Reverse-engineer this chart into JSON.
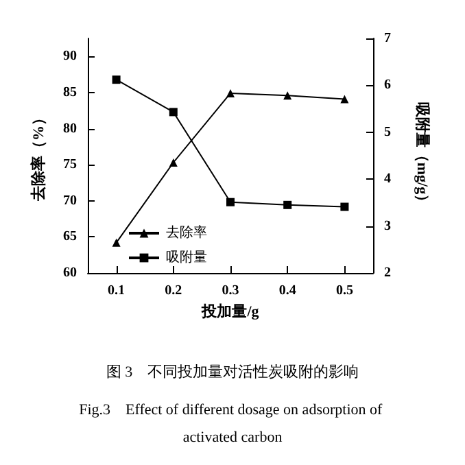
{
  "chart_data": {
    "type": "line",
    "title": "图 3　不同投加量对活性炭吸附的影响",
    "subtitle": "Fig.3　Effect of different dosage on adsorption of activated carbon",
    "xlabel": "投加量/g",
    "ylabel": "去除率（%）",
    "y2label": "吸附量（mg/g）",
    "x": [
      0.1,
      0.2,
      0.3,
      0.4,
      0.5
    ],
    "series": [
      {
        "name": "去除率",
        "color": "#000000",
        "marker": "triangle",
        "values": [
          64.2,
          75.3,
          84.9,
          84.6,
          84.1
        ]
      },
      {
        "name": "吸附量",
        "color": "#000000",
        "marker": "square",
        "axis": "y2",
        "values": [
          6.12,
          5.43,
          3.51,
          3.45,
          3.41
        ]
      }
    ],
    "xlim": [
      0.05,
      0.55
    ],
    "xticks": [
      0.1,
      0.2,
      0.3,
      0.4,
      0.5
    ],
    "ylim": [
      60,
      92.5
    ],
    "yticks": [
      60,
      65,
      70,
      75,
      80,
      85,
      90
    ],
    "y2lim": [
      2,
      7
    ],
    "y2ticks": [
      2,
      3,
      4,
      5,
      6,
      7
    ],
    "grid": false,
    "legend": "bottom left",
    "line_style": "solid"
  }
}
